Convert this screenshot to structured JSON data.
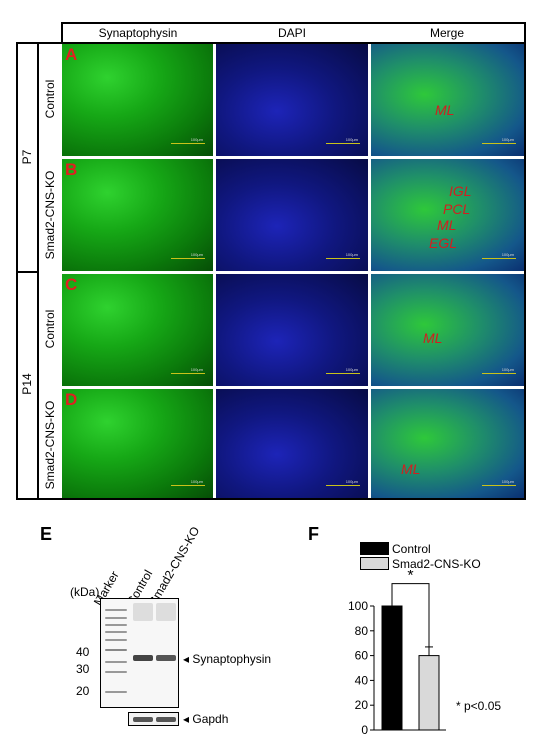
{
  "columns": [
    "Synaptophysin",
    "DAPI",
    "Merge"
  ],
  "age_labels": [
    "P7",
    "P14"
  ],
  "row_labels": [
    "Control",
    "Smad2-CNS-KO",
    "Control",
    "Smad2-CNS-KO"
  ],
  "panels": [
    "A",
    "B",
    "C",
    "D"
  ],
  "layer_labels": {
    "A": [
      "ML"
    ],
    "B": [
      "IGL",
      "PCL",
      "ML",
      "EGL"
    ],
    "C": [
      "ML"
    ],
    "D": [
      "ML"
    ]
  },
  "scale_text": "100μm",
  "blot": {
    "panel_letter": "E",
    "unit": "(kDa)",
    "lanes": [
      "Marker",
      "Control",
      "Smad2-CNS-KO"
    ],
    "mw_ticks": [
      "40",
      "30",
      "20"
    ],
    "bands": [
      "Synaptophysin",
      "Gapdh"
    ]
  },
  "chart_data": {
    "panel_letter": "F",
    "type": "bar",
    "categories": [
      "Control",
      "Smad2-CNS-KO"
    ],
    "values": [
      100,
      60
    ],
    "errors": [
      0,
      7
    ],
    "colors": [
      "#000000",
      "#d9d9d9"
    ],
    "yticks": [
      "100",
      "80",
      "60",
      "40",
      "20",
      "0"
    ],
    "ylim": [
      0,
      100
    ],
    "significance": "*",
    "note": "* p<0.05",
    "legend_position": "top"
  }
}
